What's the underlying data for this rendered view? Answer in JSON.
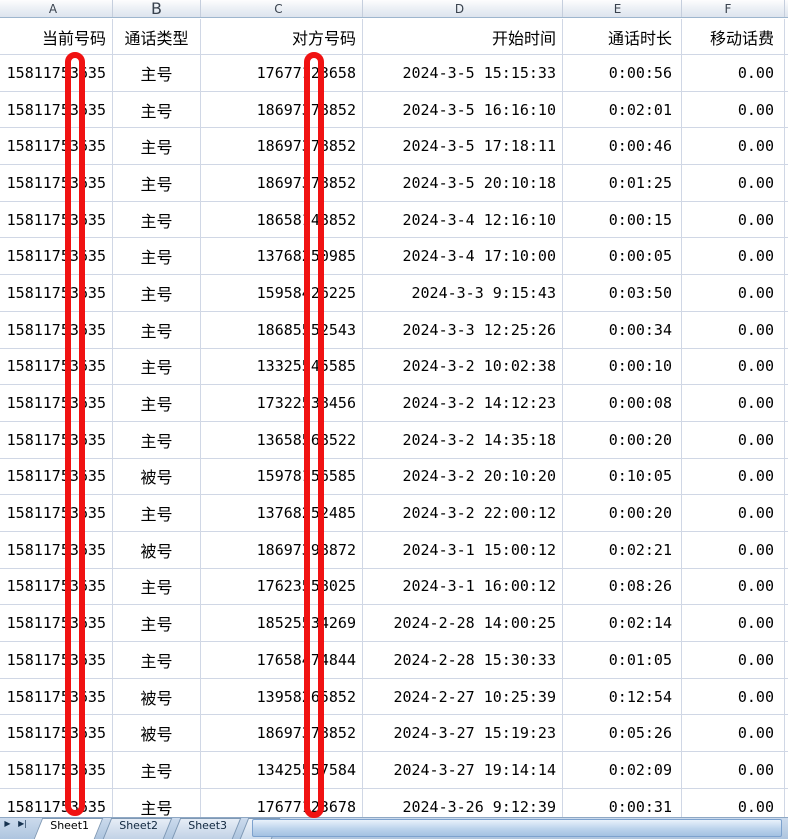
{
  "columns": {
    "letters": [
      "A",
      "B",
      "C",
      "D",
      "E",
      "F"
    ],
    "labels": [
      "当前号码",
      "通话类型",
      "对方号码",
      "开始时间",
      "通话时长",
      "移动话费"
    ]
  },
  "rows": [
    [
      "15811753635",
      "主号",
      "17677123658",
      "2024-3-5 15:15:33",
      "0:00:56",
      "0.00"
    ],
    [
      "15811753635",
      "主号",
      "18697378852",
      "2024-3-5 16:16:10",
      "0:02:01",
      "0.00"
    ],
    [
      "15811753635",
      "主号",
      "18697378852",
      "2024-3-5 17:18:11",
      "0:00:46",
      "0.00"
    ],
    [
      "15811753635",
      "主号",
      "18697378852",
      "2024-3-5 20:10:18",
      "0:01:25",
      "0.00"
    ],
    [
      "15811753635",
      "主号",
      "18658148852",
      "2024-3-4 12:16:10",
      "0:00:15",
      "0.00"
    ],
    [
      "15811753635",
      "主号",
      "13768250985",
      "2024-3-4 17:10:00",
      "0:00:05",
      "0.00"
    ],
    [
      "15811753635",
      "主号",
      "15958426225",
      "2024-3-3 9:15:43",
      "0:03:50",
      "0.00"
    ],
    [
      "15811753635",
      "主号",
      "18685552543",
      "2024-3-3 12:25:26",
      "0:00:34",
      "0.00"
    ],
    [
      "15811753635",
      "主号",
      "13325545585",
      "2024-3-2 10:02:38",
      "0:00:10",
      "0.00"
    ],
    [
      "15811753635",
      "主号",
      "17322538456",
      "2024-3-2 14:12:23",
      "0:00:08",
      "0.00"
    ],
    [
      "15811753635",
      "主号",
      "13658568522",
      "2024-3-2 14:35:18",
      "0:00:20",
      "0.00"
    ],
    [
      "15811753635",
      "被号",
      "15978156585",
      "2024-3-2 20:10:20",
      "0:10:05",
      "0.00"
    ],
    [
      "15811753635",
      "主号",
      "13768252485",
      "2024-3-2 22:00:12",
      "0:00:20",
      "0.00"
    ],
    [
      "15811753635",
      "被号",
      "18697398872",
      "2024-3-1 15:00:12",
      "0:02:21",
      "0.00"
    ],
    [
      "15811753635",
      "主号",
      "17623558025",
      "2024-3-1 16:00:12",
      "0:08:26",
      "0.00"
    ],
    [
      "15811753635",
      "主号",
      "18525534269",
      "2024-2-28 14:00:25",
      "0:02:14",
      "0.00"
    ],
    [
      "15811753635",
      "主号",
      "17658474844",
      "2024-2-28 15:30:33",
      "0:01:05",
      "0.00"
    ],
    [
      "15811753635",
      "被号",
      "13958265852",
      "2024-2-27 10:25:39",
      "0:12:54",
      "0.00"
    ],
    [
      "15811753635",
      "被号",
      "18697378852",
      "2024-3-27 15:19:23",
      "0:05:26",
      "0.00"
    ],
    [
      "15811753635",
      "主号",
      "13425557584",
      "2024-3-27 19:14:14",
      "0:02:09",
      "0.00"
    ],
    [
      "15811753635",
      "主号",
      "17677123678",
      "2024-3-26 9:12:39",
      "0:00:31",
      "0.00"
    ]
  ],
  "sheet_tabs": {
    "active": "Sheet1",
    "tabs": [
      "Sheet1",
      "Sheet2",
      "Sheet3"
    ]
  },
  "icons": {
    "tab_scroll_right": "▶",
    "tab_scroll_last": "▶|",
    "insert_sheet_star": "✦"
  },
  "colors": {
    "redaction_bar": "#f01212",
    "gridline": "#d0d7e5"
  }
}
